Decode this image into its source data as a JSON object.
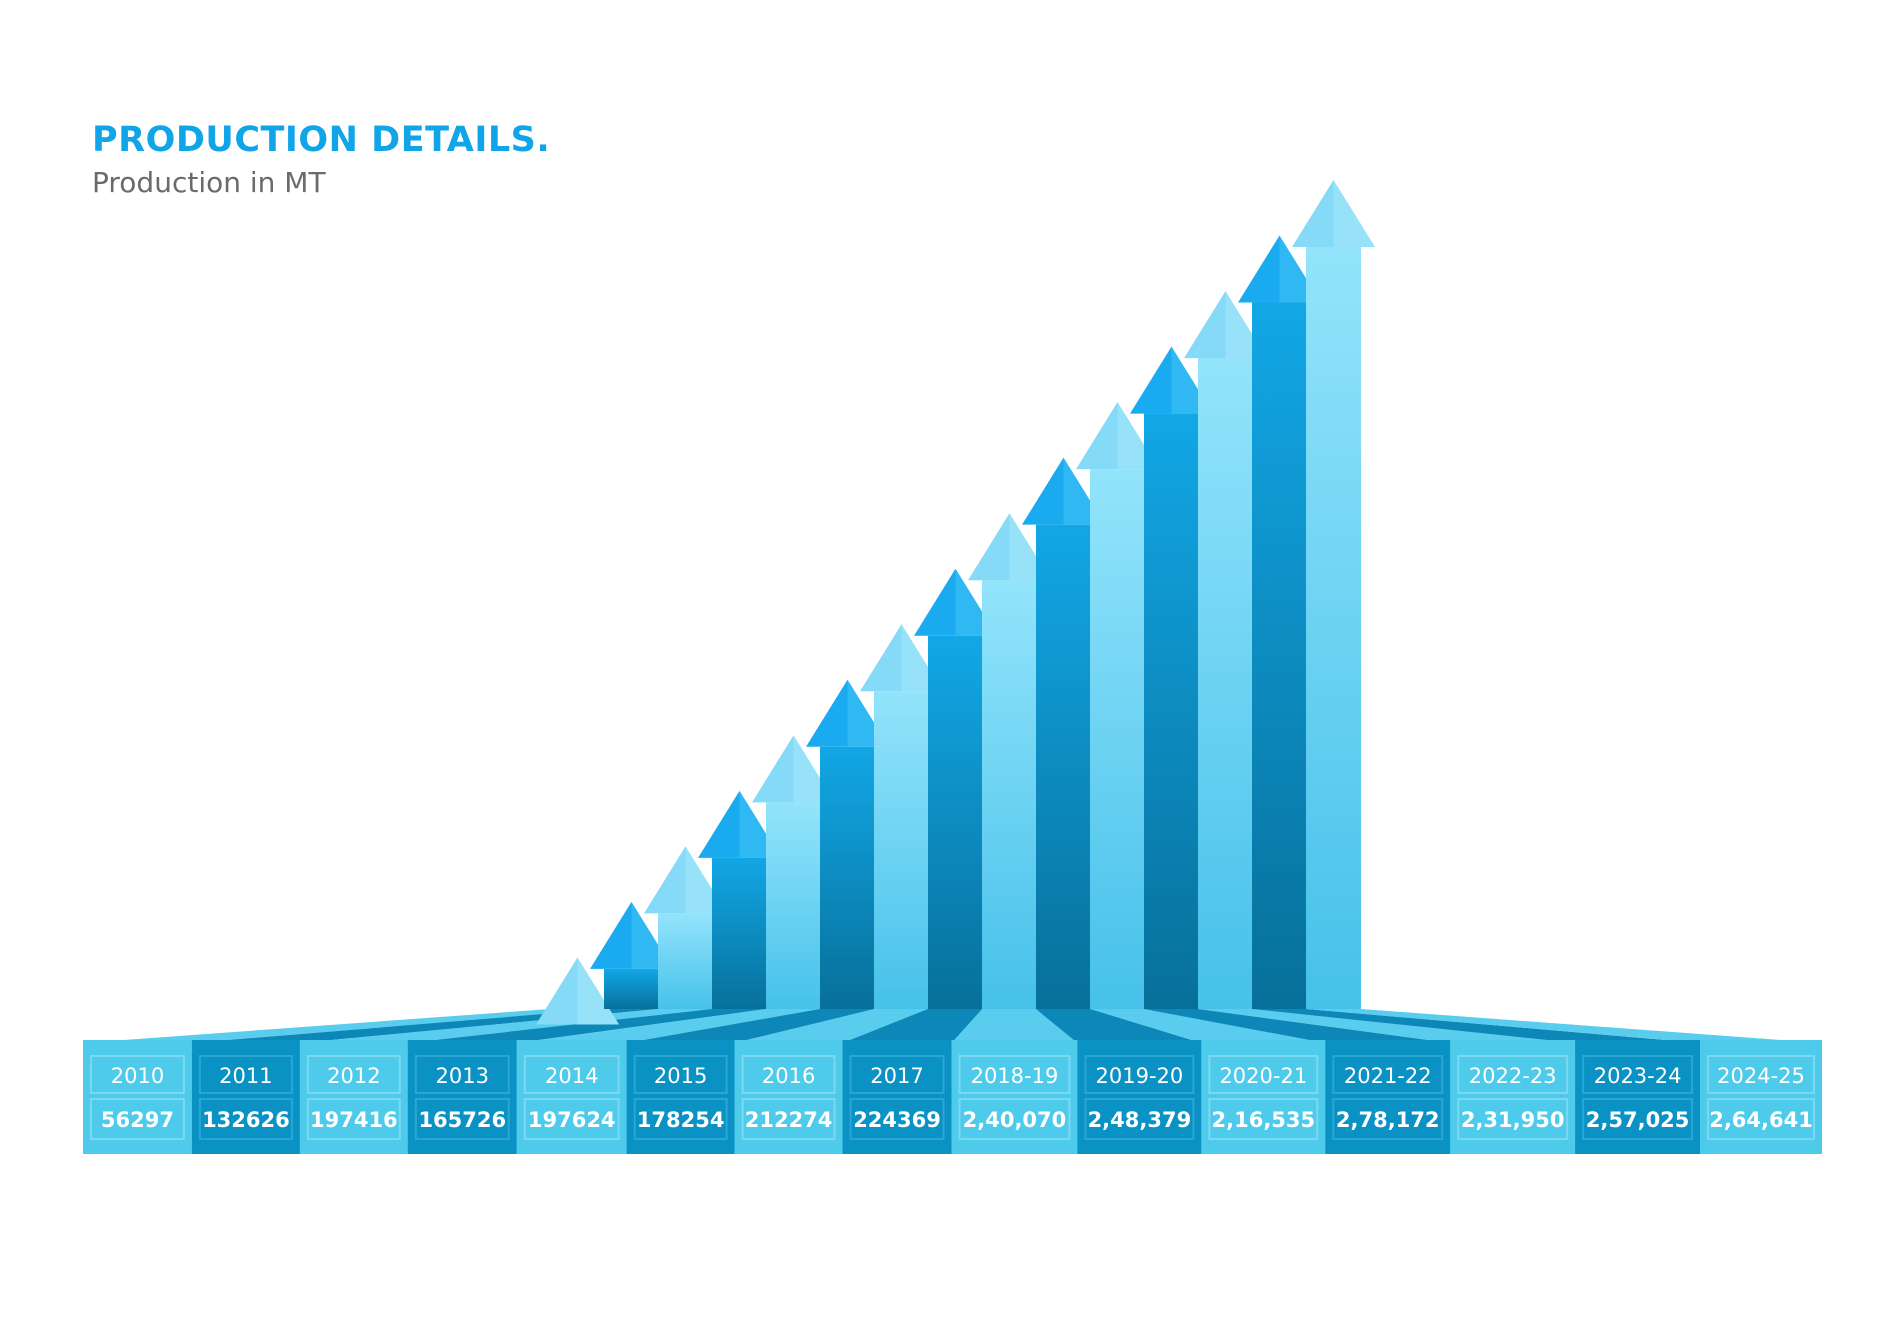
{
  "header": {
    "title": "PRODUCTION DETAILS.",
    "subtitle": "Production in MT"
  },
  "colors": {
    "title": "#10a4e8",
    "subtitle": "#6b6b6b",
    "light_cell": "#4ecbeb",
    "dark_cell": "#0a92c4",
    "light_arrow_top": "#8ee2fa",
    "light_arrow_bottom": "#49c3ea",
    "dark_arrow_top": "#15a8e6",
    "dark_arrow_bottom": "#066f99",
    "dark_arrowhead": "#1aaaf0",
    "light_arrowhead": "#84daf7"
  },
  "chart_data": {
    "type": "bar",
    "style": "arrows",
    "title": "PRODUCTION DETAILS.",
    "subtitle": "Production in MT",
    "categories": [
      "2010",
      "2011",
      "2012",
      "2013",
      "2014",
      "2015",
      "2016",
      "2017",
      "2018-19",
      "2019-20",
      "2020-21",
      "2021-22",
      "2022-23",
      "2023-24",
      "2024-25"
    ],
    "value_labels": [
      "56297",
      "132626",
      "197416",
      "165726",
      "197624",
      "178254",
      "212274",
      "224369",
      "2,40,070",
      "2,48,379",
      "2,16,535",
      "2,78,172",
      "2,31,950",
      "2,57,025",
      "2,64,641"
    ],
    "values": [
      56297,
      132626,
      197416,
      165726,
      197624,
      178254,
      212274,
      224369,
      240070,
      248379,
      216535,
      278172,
      231950,
      257025,
      264641
    ],
    "display_rank_levels": [
      1,
      2,
      3,
      4,
      5,
      6,
      7,
      8,
      9,
      10,
      11,
      12,
      13,
      14,
      15
    ],
    "legend": "none",
    "grid": false
  }
}
